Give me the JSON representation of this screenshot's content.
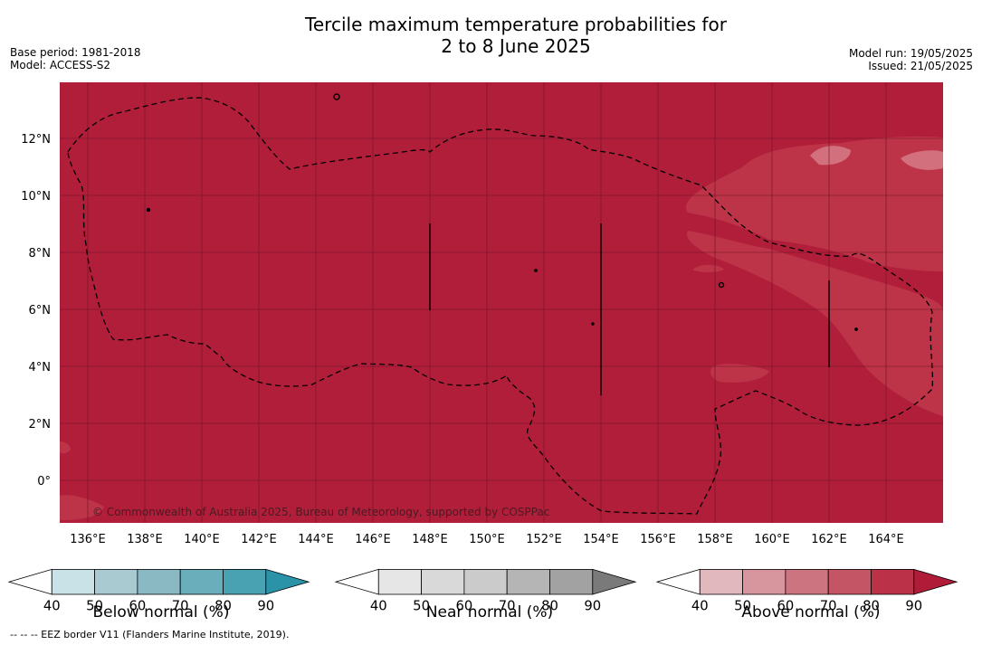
{
  "header": {
    "title_line1": "Tercile maximum temperature probabilities for",
    "title_line2": "2 to 8 June 2025",
    "base_period": "Base period: 1981-2018",
    "model": "Model: ACCESS-S2",
    "model_run": "Model run: 19/05/2025",
    "issued": "Issued: 21/05/2025"
  },
  "map": {
    "lat_labels": [
      "12°N",
      "10°N",
      "8°N",
      "6°N",
      "4°N",
      "2°N",
      "0°"
    ],
    "lon_labels": [
      "136°E",
      "138°E",
      "140°E",
      "142°E",
      "144°E",
      "146°E",
      "148°E",
      "150°E",
      "152°E",
      "154°E",
      "156°E",
      "158°E",
      "160°E",
      "162°E",
      "164°E"
    ],
    "copyright": "© Commonwealth of Australia 2025, Bureau of Meteorology, supported by COSPPac",
    "background_color": "#b11e3a",
    "secondary_color": "#bd3449"
  },
  "legend": {
    "below": {
      "title": "Below normal (%)",
      "ticks": [
        "40",
        "50",
        "60",
        "70",
        "80",
        "90"
      ],
      "colors": [
        "#ffffff",
        "#c9e2e8",
        "#a9cad1",
        "#8ab8c3",
        "#6aadbb",
        "#48a2b2",
        "#2a93a8"
      ]
    },
    "near": {
      "title": "Near normal (%)",
      "ticks": [
        "40",
        "50",
        "60",
        "70",
        "80",
        "90"
      ],
      "colors": [
        "#ffffff",
        "#e6e6e6",
        "#d9d9d9",
        "#cbcbcb",
        "#b5b5b5",
        "#a2a2a2",
        "#7a7a7a"
      ]
    },
    "above": {
      "title": "Above normal (%)",
      "ticks": [
        "40",
        "50",
        "60",
        "70",
        "80",
        "90"
      ],
      "colors": [
        "#ffffff",
        "#e0b8be",
        "#d7959d",
        "#cc7580",
        "#c45564",
        "#bb3148",
        "#b01b37"
      ]
    }
  },
  "footnote": "--  --  -- EEZ border V11 (Flanders Marine Institute, 2019)."
}
